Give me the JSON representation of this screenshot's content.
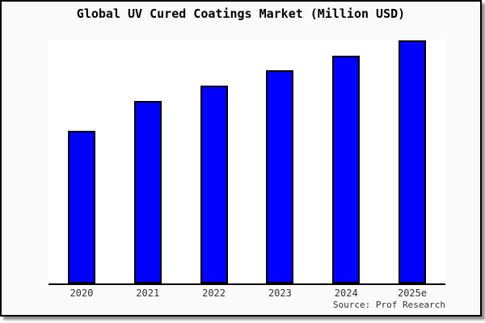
{
  "chart_data": {
    "type": "bar",
    "title": "Global UV Cured Coatings Market (Million USD)",
    "categories": [
      "2020",
      "2021",
      "2022",
      "2023",
      "2024",
      "2025e"
    ],
    "values": [
      189,
      226,
      245,
      264,
      282,
      301
    ],
    "xlabel": "",
    "ylabel": "",
    "ylim": [
      0,
      302
    ],
    "value_axis_visible": false,
    "gridlines": false,
    "legend": "none",
    "bar_orientation": "vertical"
  },
  "source_label": "Source: Prof Research",
  "colors": {
    "bar_fill": "#0000ff",
    "bar_border": "#000000",
    "frame_background": "#fafafa",
    "plot_background": "#ffffff",
    "axis": "#000000",
    "title_text": "#000000",
    "tick_text": "#333333"
  }
}
